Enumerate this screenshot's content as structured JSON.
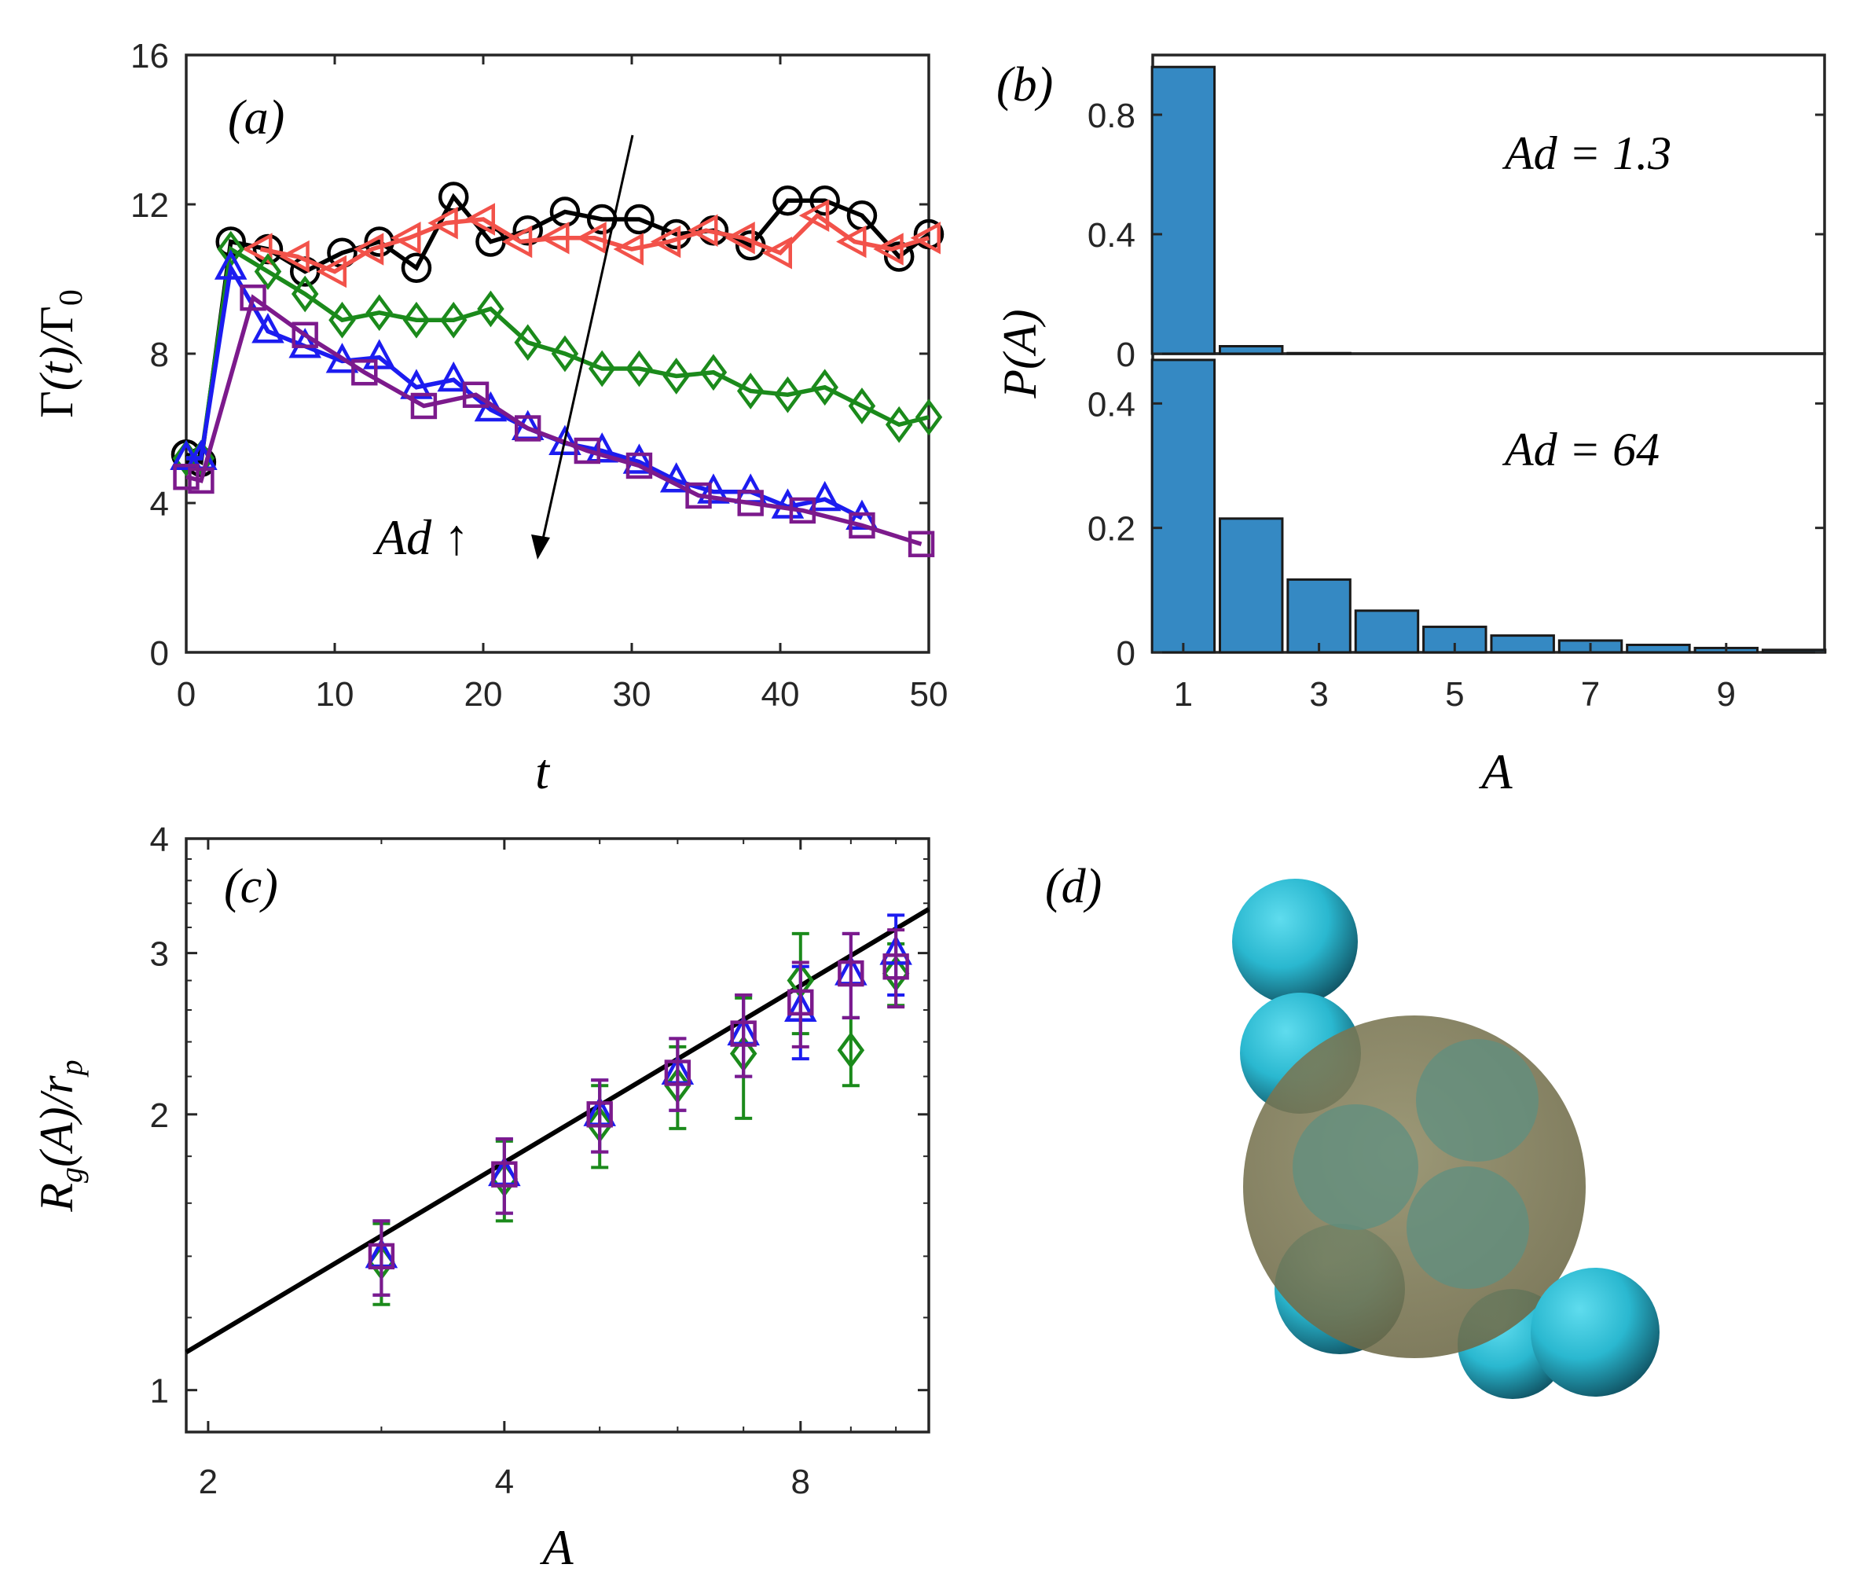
{
  "chart_data": [
    {
      "panel": "(a)",
      "type": "line",
      "xlabel": "t",
      "ylabel": "Γ(t)/Γ0",
      "xlim": [
        0,
        50
      ],
      "ylim": [
        0,
        16
      ],
      "xticks": [
        0,
        10,
        20,
        30,
        40,
        50
      ],
      "yticks": [
        0,
        4,
        8,
        12,
        16
      ],
      "annotation": "Ad ↑",
      "series": [
        {
          "name": "circles",
          "marker": "circle",
          "color": "#000000",
          "x": [
            0,
            1,
            3,
            5.5,
            8,
            10.5,
            13,
            15.5,
            18,
            20.5,
            23,
            25.5,
            28,
            30.5,
            33,
            35.5,
            38,
            40.5,
            43,
            45.5,
            48,
            50
          ],
          "y": [
            5.3,
            5.1,
            11.0,
            10.8,
            10.2,
            10.7,
            11.0,
            10.3,
            12.2,
            11.0,
            11.3,
            11.8,
            11.6,
            11.6,
            11.2,
            11.3,
            10.9,
            12.1,
            12.1,
            11.7,
            10.6,
            11.2
          ]
        },
        {
          "name": "left triangles",
          "marker": "triangle-left",
          "color": "#f2524a",
          "x": [
            5,
            7.5,
            10,
            12.5,
            15,
            17.5,
            20,
            22.5,
            25,
            27.5,
            30,
            32.5,
            35,
            37.5,
            40,
            42.5,
            45,
            47.5,
            50
          ],
          "y": [
            10.8,
            10.6,
            10.2,
            10.8,
            11.1,
            11.5,
            11.6,
            11.0,
            11.1,
            11.1,
            10.8,
            11.0,
            11.3,
            11.1,
            10.7,
            11.7,
            11.0,
            10.8,
            11.1
          ]
        },
        {
          "name": "diamonds",
          "marker": "diamond",
          "color": "#1b8a1b",
          "x": [
            0,
            1,
            3,
            5.5,
            8,
            10.5,
            13,
            15.5,
            18,
            20.5,
            23,
            25.5,
            28,
            30.5,
            33,
            35.5,
            38,
            40.5,
            43,
            45.5,
            48,
            50
          ],
          "y": [
            5.2,
            5.2,
            10.8,
            10.2,
            9.6,
            8.9,
            9.1,
            8.9,
            8.9,
            9.2,
            8.3,
            8.0,
            7.6,
            7.6,
            7.4,
            7.5,
            7.0,
            6.9,
            7.1,
            6.6,
            6.1,
            6.3
          ]
        },
        {
          "name": "triangles",
          "marker": "triangle-up",
          "color": "#1c1cf0",
          "x": [
            0,
            1,
            3,
            5.5,
            8,
            10.5,
            13,
            15.5,
            18,
            20.5,
            23,
            25.5,
            28,
            30.5,
            33,
            35.5,
            38,
            40.5,
            43,
            45.5
          ],
          "y": [
            5.2,
            5.2,
            10.3,
            8.6,
            8.2,
            7.8,
            7.9,
            7.1,
            7.3,
            6.5,
            6.0,
            5.6,
            5.4,
            5.1,
            4.6,
            4.3,
            4.3,
            3.9,
            4.1,
            3.6
          ]
        },
        {
          "name": "squares",
          "marker": "square",
          "color": "#7c1a8c",
          "x": [
            0,
            1,
            4.5,
            8,
            12,
            16,
            19.5,
            23,
            27,
            30.5,
            34.5,
            38,
            41.5,
            45.5,
            49.5
          ],
          "y": [
            4.7,
            4.6,
            9.5,
            8.5,
            7.5,
            6.6,
            6.9,
            6.0,
            5.4,
            5.0,
            4.2,
            4.0,
            3.8,
            3.4,
            2.9
          ]
        }
      ]
    },
    {
      "panel": "(b)",
      "type": "bar",
      "xlabel": "A",
      "ylabel": "P(A)",
      "xticks": [
        1,
        3,
        5,
        7,
        9
      ],
      "bar_color": "#3589c3",
      "subplots": [
        {
          "annotation": "Ad = 1.3",
          "ylim": [
            0,
            1.0
          ],
          "yticks": [
            0,
            0.4,
            0.8
          ],
          "categories": [
            1,
            2,
            3
          ],
          "values": [
            0.96,
            0.025,
            0.002
          ]
        },
        {
          "annotation": "Ad = 64",
          "ylim": [
            0,
            0.48
          ],
          "yticks": [
            0,
            0.2,
            0.4
          ],
          "categories": [
            1,
            2,
            3,
            4,
            5,
            6,
            7,
            8,
            9,
            10
          ],
          "values": [
            0.47,
            0.215,
            0.117,
            0.067,
            0.041,
            0.027,
            0.019,
            0.012,
            0.007,
            0.004
          ]
        }
      ]
    },
    {
      "panel": "(c)",
      "type": "scatter",
      "scale": "log-log",
      "xlabel": "A",
      "ylabel": "R_g(A)/r_p",
      "xlim": [
        1.9,
        10.8
      ],
      "ylim": [
        0.9,
        4
      ],
      "xticks": [
        2,
        4,
        8
      ],
      "yticks": [
        1,
        2,
        3,
        4
      ],
      "fit_line": {
        "color": "#000000",
        "x": [
          1.9,
          10.8
        ],
        "y": [
          1.1,
          3.35
        ]
      },
      "series": [
        {
          "name": "diamonds",
          "marker": "diamond",
          "color": "#1b8a1b",
          "x": [
            3,
            4,
            5,
            6,
            7,
            8,
            9,
            10
          ],
          "y": [
            1.38,
            1.7,
            1.95,
            2.15,
            2.33,
            2.8,
            2.35,
            2.85
          ],
          "err": [
            0.14,
            0.17,
            0.2,
            0.22,
            0.35,
            0.35,
            0.2,
            0.22
          ]
        },
        {
          "name": "triangles",
          "marker": "triangle-up",
          "color": "#1c1cf0",
          "x": [
            3,
            4,
            5,
            6,
            7,
            8,
            9,
            10
          ],
          "y": [
            1.4,
            1.72,
            2.0,
            2.22,
            2.45,
            2.6,
            2.85,
            3.0
          ],
          "err": [
            0.13,
            0.16,
            0.18,
            0.2,
            0.25,
            0.3,
            0.3,
            0.3
          ]
        },
        {
          "name": "squares",
          "marker": "square",
          "color": "#7c1a8c",
          "x": [
            3,
            4,
            5,
            6,
            7,
            8,
            9,
            10
          ],
          "y": [
            1.4,
            1.72,
            2.0,
            2.22,
            2.45,
            2.65,
            2.85,
            2.9
          ],
          "err": [
            0.13,
            0.16,
            0.18,
            0.2,
            0.25,
            0.28,
            0.3,
            0.28
          ]
        }
      ]
    }
  ],
  "panels": {
    "a": {
      "label": "(a)",
      "annotation": "Ad ↑"
    },
    "b": {
      "label": "(b)",
      "annotation_top": "Ad = 1.3",
      "annotation_bottom": "Ad = 64"
    },
    "c": {
      "label": "(c)"
    },
    "d": {
      "label": "(d)"
    }
  },
  "colors": {
    "sphere": "#33c6dc",
    "sphere_shadow": "#1d6f82",
    "envelope": "#7f7a55"
  }
}
